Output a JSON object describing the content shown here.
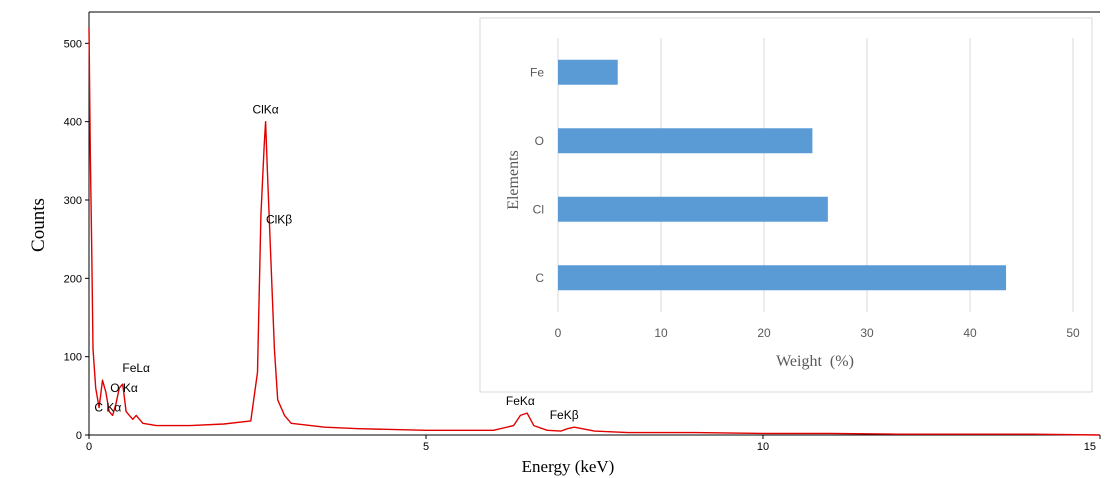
{
  "chart_data": [
    {
      "type": "line",
      "xlabel": "Energy (keV)",
      "ylabel": "Counts",
      "xlim": [
        0,
        15
      ],
      "ylim": [
        0,
        540
      ],
      "x_ticks": [
        0,
        5,
        10,
        15
      ],
      "x_tick_labels": [
        "0",
        "5",
        "10",
        "15"
      ],
      "y_ticks": [
        0,
        100,
        200,
        300,
        400,
        500
      ],
      "y_tick_labels": [
        "0",
        "100",
        "200",
        "300",
        "400",
        "500"
      ],
      "color": "#e00000",
      "grid": false,
      "series": [
        {
          "x": [
            0.0,
            0.02,
            0.04,
            0.06,
            0.1,
            0.15,
            0.2,
            0.25,
            0.3,
            0.35,
            0.4,
            0.45,
            0.5,
            0.55,
            0.6,
            0.65,
            0.7,
            0.8,
            1.0,
            1.5,
            2.0,
            2.4,
            2.5,
            2.55,
            2.6,
            2.62,
            2.65,
            2.7,
            2.75,
            2.8,
            2.9,
            3.0,
            3.5,
            4.0,
            5.0,
            6.0,
            6.3,
            6.4,
            6.5,
            6.6,
            6.8,
            7.0,
            7.1,
            7.2,
            7.5,
            8.0,
            9.0,
            10.0,
            11.0,
            12.0,
            13.0,
            14.0,
            15.0
          ],
          "y": [
            520,
            360,
            240,
            110,
            60,
            35,
            70,
            55,
            30,
            25,
            40,
            60,
            65,
            30,
            25,
            20,
            25,
            15,
            12,
            12,
            14,
            18,
            80,
            280,
            370,
            400,
            330,
            220,
            110,
            45,
            25,
            15,
            10,
            8,
            6,
            6,
            12,
            25,
            28,
            12,
            6,
            5,
            8,
            10,
            5,
            3,
            3,
            2,
            2,
            1,
            1,
            1,
            0
          ]
        }
      ],
      "annotations": [
        {
          "text": "ClKα",
          "x": 2.62,
          "y": 400
        },
        {
          "text": "ClKβ",
          "x": 2.82,
          "y": 260
        },
        {
          "text": "FeLα",
          "x": 0.7,
          "y": 70
        },
        {
          "text": "O Kα",
          "x": 0.52,
          "y": 45
        },
        {
          "text": "C Kα",
          "x": 0.28,
          "y": 20
        },
        {
          "text": "FeKα",
          "x": 6.4,
          "y": 28
        },
        {
          "text": "FeKβ",
          "x": 7.05,
          "y": 10
        }
      ]
    },
    {
      "type": "bar",
      "orientation": "horizontal",
      "categories": [
        "C",
        "Cl",
        "O",
        "Fe"
      ],
      "values": [
        43.5,
        26.2,
        24.7,
        5.8
      ],
      "xlabel": "Weight  (%)",
      "ylabel": "Elements",
      "xlim": [
        0,
        50
      ],
      "x_ticks": [
        0,
        10,
        20,
        30,
        40,
        50
      ],
      "x_tick_labels": [
        "0",
        "10",
        "20",
        "30",
        "40",
        "50"
      ],
      "color": "#5b9bd5",
      "grid": true
    }
  ]
}
